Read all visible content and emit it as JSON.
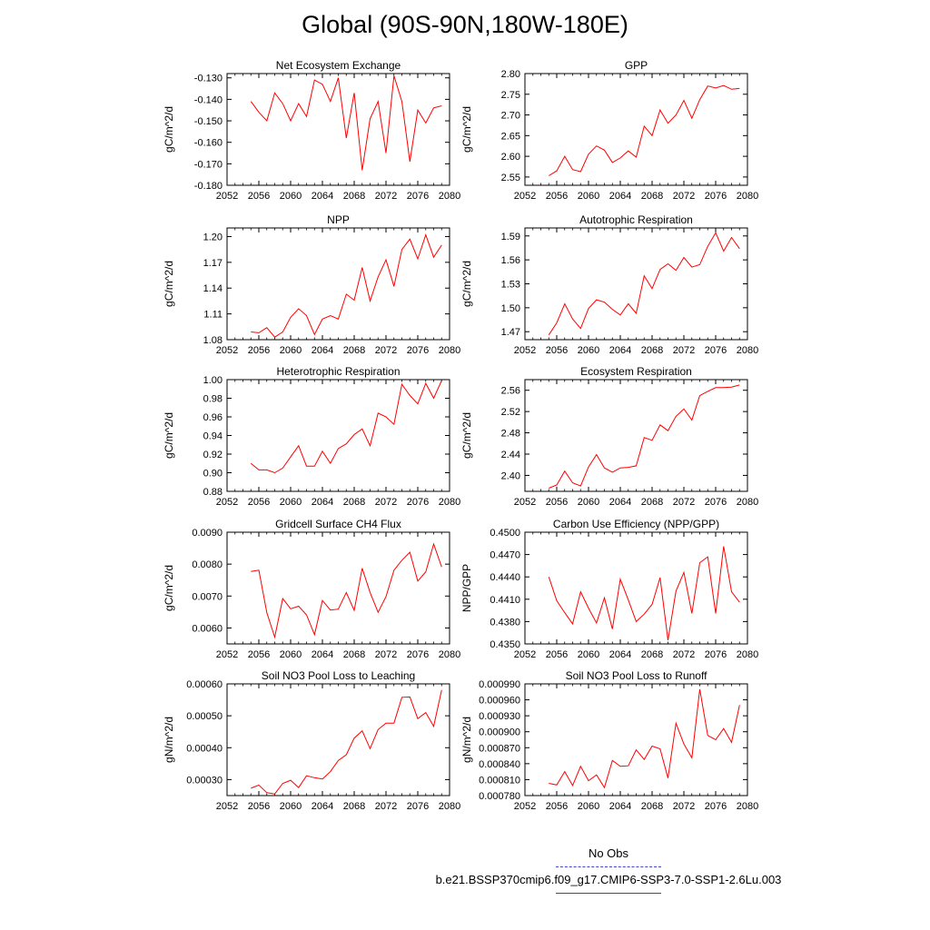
{
  "page": {
    "title": "Global (90S-90N,180W-180E)"
  },
  "legend": {
    "entries": [
      {
        "label": "No Obs",
        "color": "#4444cc",
        "style": "dashed"
      },
      {
        "label": "b.e21.BSSP370cmip6.f09_g17.CMIP6-SSP3-7.0-SSP1-2.6Lu.003",
        "color": "#ff0000",
        "style": "solid"
      }
    ]
  },
  "chart_data": [
    {
      "type": "line",
      "title": "Net Ecosystem Exchange",
      "ylabel": "gC/m^2/d",
      "xlabel": "",
      "xlim": [
        2052,
        2080
      ],
      "ylim": [
        -0.18,
        -0.128
      ],
      "xticks": [
        2052,
        2056,
        2060,
        2064,
        2068,
        2072,
        2076,
        2080
      ],
      "yticks": [
        -0.18,
        -0.17,
        -0.16,
        -0.15,
        -0.14,
        -0.13
      ],
      "tick_labels": [
        "-0.180",
        "-0.170",
        "-0.160",
        "-0.150",
        "-0.140",
        "-0.130"
      ],
      "x": [
        2055,
        2056,
        2057,
        2058,
        2059,
        2060,
        2061,
        2062,
        2063,
        2064,
        2065,
        2066,
        2067,
        2068,
        2069,
        2070,
        2071,
        2072,
        2073,
        2074,
        2075,
        2076,
        2077,
        2078,
        2079
      ],
      "series": [
        {
          "values": [
            -0.141,
            -0.146,
            -0.15,
            -0.137,
            -0.142,
            -0.15,
            -0.142,
            -0.148,
            -0.131,
            -0.133,
            -0.141,
            -0.13,
            -0.158,
            -0.137,
            -0.173,
            -0.149,
            -0.141,
            -0.165,
            -0.129,
            -0.141,
            -0.169,
            -0.145,
            -0.151,
            -0.144,
            -0.143
          ],
          "color": "#ff0000"
        }
      ]
    },
    {
      "type": "line",
      "title": "GPP",
      "ylabel": "gC/m^2/d",
      "xlabel": "",
      "xlim": [
        2052,
        2080
      ],
      "ylim": [
        2.53,
        2.8
      ],
      "xticks": [
        2052,
        2056,
        2060,
        2064,
        2068,
        2072,
        2076,
        2080
      ],
      "yticks": [
        2.55,
        2.6,
        2.65,
        2.7,
        2.75,
        2.8
      ],
      "tick_labels": [
        "2.55",
        "2.60",
        "2.65",
        "2.70",
        "2.75",
        "2.80"
      ],
      "x": [
        2055,
        2056,
        2057,
        2058,
        2059,
        2060,
        2061,
        2062,
        2063,
        2064,
        2065,
        2066,
        2067,
        2068,
        2069,
        2070,
        2071,
        2072,
        2073,
        2074,
        2075,
        2076,
        2077,
        2078,
        2079
      ],
      "series": [
        {
          "values": [
            2.553,
            2.565,
            2.6,
            2.568,
            2.563,
            2.605,
            2.625,
            2.615,
            2.585,
            2.596,
            2.613,
            2.598,
            2.673,
            2.65,
            2.712,
            2.68,
            2.7,
            2.735,
            2.692,
            2.737,
            2.77,
            2.765,
            2.771,
            2.762,
            2.764
          ],
          "color": "#ff0000"
        }
      ]
    },
    {
      "type": "line",
      "title": "NPP",
      "ylabel": "gC/m^2/d",
      "xlabel": "",
      "xlim": [
        2052,
        2080
      ],
      "ylim": [
        1.08,
        1.21
      ],
      "xticks": [
        2052,
        2056,
        2060,
        2064,
        2068,
        2072,
        2076,
        2080
      ],
      "yticks": [
        1.08,
        1.11,
        1.14,
        1.17,
        1.2
      ],
      "tick_labels": [
        "1.08",
        "1.11",
        "1.14",
        "1.17",
        "1.20"
      ],
      "x": [
        2055,
        2056,
        2057,
        2058,
        2059,
        2060,
        2061,
        2062,
        2063,
        2064,
        2065,
        2066,
        2067,
        2068,
        2069,
        2070,
        2071,
        2072,
        2073,
        2074,
        2075,
        2076,
        2077,
        2078,
        2079
      ],
      "series": [
        {
          "values": [
            1.089,
            1.088,
            1.094,
            1.083,
            1.089,
            1.106,
            1.116,
            1.108,
            1.086,
            1.104,
            1.108,
            1.104,
            1.133,
            1.126,
            1.164,
            1.125,
            1.153,
            1.173,
            1.142,
            1.185,
            1.197,
            1.174,
            1.202,
            1.176,
            1.19
          ],
          "color": "#ff0000"
        }
      ]
    },
    {
      "type": "line",
      "title": "Autotrophic Respiration",
      "ylabel": "gC/m^2/d",
      "xlabel": "",
      "xlim": [
        2052,
        2080
      ],
      "ylim": [
        1.46,
        1.6
      ],
      "xticks": [
        2052,
        2056,
        2060,
        2064,
        2068,
        2072,
        2076,
        2080
      ],
      "yticks": [
        1.47,
        1.5,
        1.53,
        1.56,
        1.59
      ],
      "tick_labels": [
        "1.47",
        "1.50",
        "1.53",
        "1.56",
        "1.59"
      ],
      "x": [
        2055,
        2056,
        2057,
        2058,
        2059,
        2060,
        2061,
        2062,
        2063,
        2064,
        2065,
        2066,
        2067,
        2068,
        2069,
        2070,
        2071,
        2072,
        2073,
        2074,
        2075,
        2076,
        2077,
        2078,
        2079
      ],
      "series": [
        {
          "values": [
            1.466,
            1.481,
            1.505,
            1.486,
            1.474,
            1.499,
            1.51,
            1.507,
            1.498,
            1.491,
            1.505,
            1.493,
            1.54,
            1.524,
            1.548,
            1.555,
            1.547,
            1.563,
            1.551,
            1.554,
            1.577,
            1.594,
            1.571,
            1.588,
            1.574
          ],
          "color": "#ff0000"
        }
      ]
    },
    {
      "type": "line",
      "title": "Heterotrophic Respiration",
      "ylabel": "gC/m^2/d",
      "xlabel": "",
      "xlim": [
        2052,
        2080
      ],
      "ylim": [
        0.88,
        1.0
      ],
      "xticks": [
        2052,
        2056,
        2060,
        2064,
        2068,
        2072,
        2076,
        2080
      ],
      "yticks": [
        0.88,
        0.9,
        0.92,
        0.94,
        0.96,
        0.98,
        1.0
      ],
      "tick_labels": [
        "0.88",
        "0.90",
        "0.92",
        "0.94",
        "0.96",
        "0.98",
        "1.00"
      ],
      "x": [
        2055,
        2056,
        2057,
        2058,
        2059,
        2060,
        2061,
        2062,
        2063,
        2064,
        2065,
        2066,
        2067,
        2068,
        2069,
        2070,
        2071,
        2072,
        2073,
        2074,
        2075,
        2076,
        2077,
        2078,
        2079
      ],
      "series": [
        {
          "values": [
            0.91,
            0.903,
            0.903,
            0.9,
            0.905,
            0.917,
            0.929,
            0.907,
            0.907,
            0.923,
            0.91,
            0.926,
            0.931,
            0.941,
            0.947,
            0.929,
            0.964,
            0.96,
            0.952,
            0.995,
            0.983,
            0.974,
            0.996,
            0.98,
            0.999
          ],
          "color": "#ff0000"
        }
      ]
    },
    {
      "type": "line",
      "title": "Ecosystem Respiration",
      "ylabel": "gC/m^2/d",
      "xlabel": "",
      "xlim": [
        2052,
        2080
      ],
      "ylim": [
        2.37,
        2.58
      ],
      "xticks": [
        2052,
        2056,
        2060,
        2064,
        2068,
        2072,
        2076,
        2080
      ],
      "yticks": [
        2.4,
        2.44,
        2.48,
        2.52,
        2.56
      ],
      "tick_labels": [
        "2.40",
        "2.44",
        "2.48",
        "2.52",
        "2.56"
      ],
      "x": [
        2055,
        2056,
        2057,
        2058,
        2059,
        2060,
        2061,
        2062,
        2063,
        2064,
        2065,
        2066,
        2067,
        2068,
        2069,
        2070,
        2071,
        2072,
        2073,
        2074,
        2075,
        2076,
        2077,
        2078,
        2079
      ],
      "series": [
        {
          "values": [
            2.376,
            2.382,
            2.408,
            2.386,
            2.38,
            2.416,
            2.439,
            2.414,
            2.406,
            2.414,
            2.415,
            2.418,
            2.471,
            2.466,
            2.495,
            2.484,
            2.511,
            2.525,
            2.504,
            2.55,
            2.558,
            2.565,
            2.565,
            2.566,
            2.57
          ],
          "color": "#ff0000"
        }
      ]
    },
    {
      "type": "line",
      "title": "Gridcell Surface CH4 Flux",
      "ylabel": "gC/m^2/d",
      "xlabel": "",
      "xlim": [
        2052,
        2080
      ],
      "ylim": [
        0.0055,
        0.009
      ],
      "xticks": [
        2052,
        2056,
        2060,
        2064,
        2068,
        2072,
        2076,
        2080
      ],
      "yticks": [
        0.006,
        0.007,
        0.008,
        0.009
      ],
      "tick_labels": [
        "0.0060",
        "0.0070",
        "0.0080",
        "0.0090"
      ],
      "x": [
        2055,
        2056,
        2057,
        2058,
        2059,
        2060,
        2061,
        2062,
        2063,
        2064,
        2065,
        2066,
        2067,
        2068,
        2069,
        2070,
        2071,
        2072,
        2073,
        2074,
        2075,
        2076,
        2077,
        2078,
        2079
      ],
      "series": [
        {
          "values": [
            0.00777,
            0.00781,
            0.00648,
            0.00571,
            0.00692,
            0.0066,
            0.00668,
            0.00641,
            0.00579,
            0.00686,
            0.00656,
            0.00659,
            0.00711,
            0.00655,
            0.00787,
            0.00711,
            0.00649,
            0.00698,
            0.00781,
            0.00812,
            0.00837,
            0.00747,
            0.00776,
            0.00863,
            0.00791
          ],
          "color": "#ff0000"
        }
      ]
    },
    {
      "type": "line",
      "title": "Carbon Use Efficiency (NPP/GPP)",
      "ylabel": "NPP/GPP",
      "xlabel": "",
      "xlim": [
        2052,
        2080
      ],
      "ylim": [
        0.435,
        0.45
      ],
      "xticks": [
        2052,
        2056,
        2060,
        2064,
        2068,
        2072,
        2076,
        2080
      ],
      "yticks": [
        0.435,
        0.438,
        0.441,
        0.444,
        0.447,
        0.45
      ],
      "tick_labels": [
        "0.4350",
        "0.4380",
        "0.4410",
        "0.4440",
        "0.4470",
        "0.4500"
      ],
      "x": [
        2055,
        2056,
        2057,
        2058,
        2059,
        2060,
        2061,
        2062,
        2063,
        2064,
        2065,
        2066,
        2067,
        2068,
        2069,
        2070,
        2071,
        2072,
        2073,
        2074,
        2075,
        2076,
        2077,
        2078,
        2079
      ],
      "series": [
        {
          "values": [
            0.444,
            0.4408,
            0.4392,
            0.4377,
            0.442,
            0.4398,
            0.4378,
            0.4412,
            0.437,
            0.4437,
            0.4409,
            0.438,
            0.439,
            0.4403,
            0.4439,
            0.4355,
            0.4421,
            0.4446,
            0.4391,
            0.4459,
            0.4467,
            0.4391,
            0.4481,
            0.442,
            0.4406
          ],
          "color": "#ff0000"
        }
      ]
    },
    {
      "type": "line",
      "title": "Soil NO3 Pool Loss to Leaching",
      "ylabel": "gN/m^2/d",
      "xlabel": "",
      "xlim": [
        2052,
        2080
      ],
      "ylim": [
        0.00025,
        0.0006
      ],
      "xticks": [
        2052,
        2056,
        2060,
        2064,
        2068,
        2072,
        2076,
        2080
      ],
      "yticks": [
        0.0003,
        0.0004,
        0.0005,
        0.0006
      ],
      "tick_labels": [
        "0.00030",
        "0.00040",
        "0.00050",
        "0.00060"
      ],
      "x": [
        2055,
        2056,
        2057,
        2058,
        2059,
        2060,
        2061,
        2062,
        2063,
        2064,
        2065,
        2066,
        2067,
        2068,
        2069,
        2070,
        2071,
        2072,
        2073,
        2074,
        2075,
        2076,
        2077,
        2078,
        2079
      ],
      "series": [
        {
          "values": [
            0.000273,
            0.000283,
            0.000259,
            0.000255,
            0.000288,
            0.000298,
            0.000275,
            0.000312,
            0.000306,
            0.000302,
            0.000325,
            0.00036,
            0.000378,
            0.00043,
            0.000453,
            0.000397,
            0.000457,
            0.000477,
            0.000477,
            0.000558,
            0.000559,
            0.000491,
            0.00051,
            0.000467,
            0.000581
          ],
          "color": "#ff0000"
        }
      ]
    },
    {
      "type": "line",
      "title": "Soil NO3 Pool Loss to Runoff",
      "ylabel": "gN/m^2/d",
      "xlabel": "",
      "xlim": [
        2052,
        2080
      ],
      "ylim": [
        0.00078,
        0.00099
      ],
      "xticks": [
        2052,
        2056,
        2060,
        2064,
        2068,
        2072,
        2076,
        2080
      ],
      "yticks": [
        0.00078,
        0.00081,
        0.00084,
        0.00087,
        0.0009,
        0.00093,
        0.00096,
        0.00099
      ],
      "tick_labels": [
        "0.000780",
        "0.000810",
        "0.000840",
        "0.000870",
        "0.000900",
        "0.000930",
        "0.000960",
        "0.000990"
      ],
      "x": [
        2055,
        2056,
        2057,
        2058,
        2059,
        2060,
        2061,
        2062,
        2063,
        2064,
        2065,
        2066,
        2067,
        2068,
        2069,
        2070,
        2071,
        2072,
        2073,
        2074,
        2075,
        2076,
        2077,
        2078,
        2079
      ],
      "series": [
        {
          "values": [
            0.000803,
            0.0008,
            0.000825,
            0.000799,
            0.000835,
            0.000808,
            0.000819,
            0.000795,
            0.000846,
            0.000835,
            0.000836,
            0.000866,
            0.000848,
            0.000873,
            0.000868,
            0.000813,
            0.000916,
            0.000877,
            0.000851,
            0.00098,
            0.000893,
            0.000885,
            0.000906,
            0.00088,
            0.00095
          ],
          "color": "#ff0000"
        }
      ]
    }
  ]
}
